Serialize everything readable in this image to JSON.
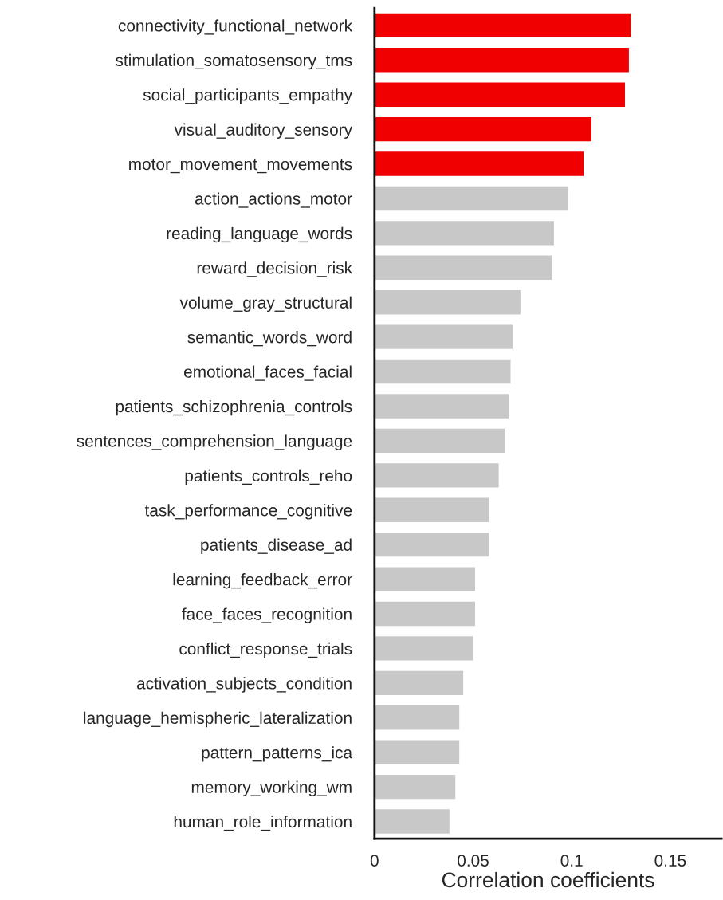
{
  "chart_data": {
    "type": "bar",
    "orientation": "horizontal",
    "xlabel": "Correlation coefficients",
    "categories": [
      "connectivity_functional_network",
      "stimulation_somatosensory_tms",
      "social_participants_empathy",
      "visual_auditory_sensory",
      "motor_movement_movements",
      "action_actions_motor",
      "reading_language_words",
      "reward_decision_risk",
      "volume_gray_structural",
      "semantic_words_word",
      "emotional_faces_facial",
      "patients_schizophrenia_controls",
      "sentences_comprehension_language",
      "patients_controls_reho",
      "task_performance_cognitive",
      "patients_disease_ad",
      "learning_feedback_error",
      "face_faces_recognition",
      "conflict_response_trials",
      "activation_subjects_condition",
      "language_hemispheric_lateralization",
      "pattern_patterns_ica",
      "memory_working_wm",
      "human_role_information"
    ],
    "values": [
      0.13,
      0.129,
      0.127,
      0.11,
      0.106,
      0.098,
      0.091,
      0.09,
      0.074,
      0.07,
      0.069,
      0.068,
      0.066,
      0.063,
      0.058,
      0.058,
      0.051,
      0.051,
      0.05,
      0.045,
      0.043,
      0.043,
      0.041,
      0.038
    ],
    "colors": [
      "#f00000",
      "#f00000",
      "#f00000",
      "#f00000",
      "#f00000",
      "#c8c8c8",
      "#c8c8c8",
      "#c8c8c8",
      "#c8c8c8",
      "#c8c8c8",
      "#c8c8c8",
      "#c8c8c8",
      "#c8c8c8",
      "#c8c8c8",
      "#c8c8c8",
      "#c8c8c8",
      "#c8c8c8",
      "#c8c8c8",
      "#c8c8c8",
      "#c8c8c8",
      "#c8c8c8",
      "#c8c8c8",
      "#c8c8c8",
      "#c8c8c8"
    ],
    "xlim": [
      0,
      0.176
    ],
    "xticks": [
      0,
      0.05,
      0.1,
      0.15
    ],
    "grid": false
  }
}
